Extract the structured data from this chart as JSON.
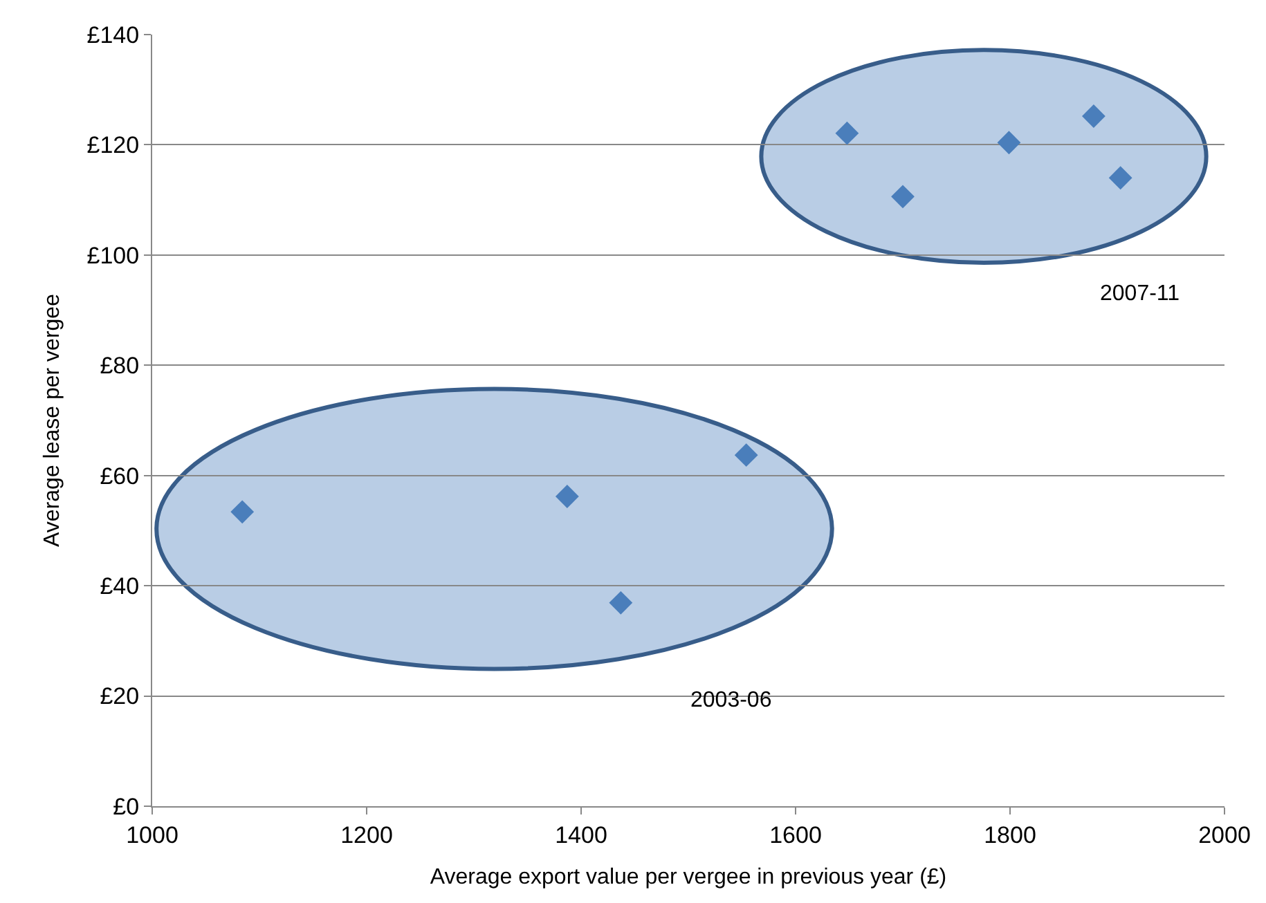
{
  "chart_data": {
    "type": "scatter",
    "xlabel": "Average export value per vergee in previous year (£)",
    "ylabel": "Average lease per vergee",
    "series": [
      {
        "color": "#4a7ebb",
        "x": [
          1084,
          1387,
          1437,
          1554
        ],
        "values": [
          53.4,
          56.2,
          36.9,
          63.7
        ]
      },
      {
        "color": "#4a7ebb",
        "x": [
          1648,
          1700,
          1799,
          1878,
          1903
        ],
        "values": [
          122.1,
          110.6,
          120.4,
          125.2,
          114.0
        ]
      }
    ],
    "annotations": [
      "2003-06",
      "2007-11"
    ],
    "xlim": [
      1000,
      2000
    ],
    "xticks": [
      1000,
      1200,
      1400,
      1600,
      1800,
      2000
    ],
    "ylim": [
      0,
      140
    ],
    "yticks": [
      {
        "value": 0,
        "label": "£0"
      },
      {
        "value": 20,
        "label": "£20"
      },
      {
        "value": 40,
        "label": "£40"
      },
      {
        "value": 60,
        "label": "£60"
      },
      {
        "value": 80,
        "label": "£80"
      },
      {
        "value": 100,
        "label": "£100"
      },
      {
        "value": 120,
        "label": "£120"
      },
      {
        "value": 140,
        "label": "£140"
      }
    ],
    "grid": "y",
    "marker": "diamond"
  }
}
